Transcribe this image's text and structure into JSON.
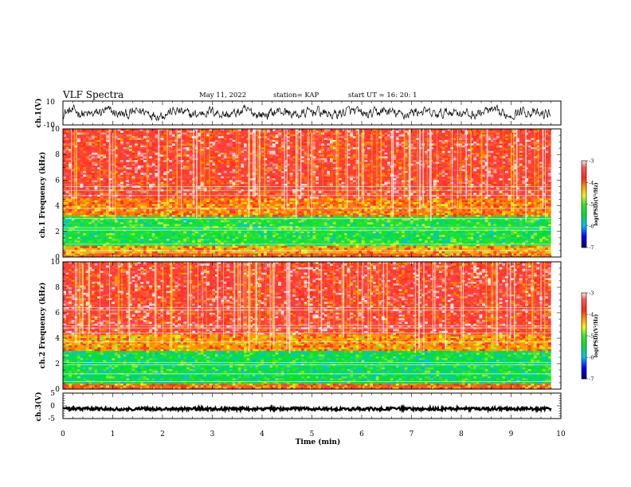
{
  "header": {
    "title": "VLF Spectra",
    "date": "May 11, 2022",
    "station": "station= KAP",
    "start": "start UT =  16: 20: 1"
  },
  "chart_data": [
    {
      "type": "line",
      "panel": "ch1-waveform",
      "ylabel": "ch.1(V)",
      "ylim": [
        -10,
        10
      ],
      "yticks": [
        "10",
        "-10"
      ],
      "x_range_min": [
        0,
        9.8
      ],
      "description_values": "broadband noise, amplitude roughly -6 to +6 V"
    },
    {
      "type": "heatmap",
      "panel": "ch1-spectrogram",
      "ylabel": "ch.1 Frequency (kHz)",
      "ylim": [
        0,
        10
      ],
      "yticks": [
        0,
        2,
        4,
        6,
        8,
        10
      ],
      "x_range_min": [
        0,
        9.8
      ],
      "bands_kHz": [
        {
          "from": 0.0,
          "to": 0.3,
          "log_psd": -4.0
        },
        {
          "from": 0.3,
          "to": 0.9,
          "log_psd": -4.3
        },
        {
          "from": 0.9,
          "to": 3.2,
          "log_psd": -5.3
        },
        {
          "from": 3.2,
          "to": 4.6,
          "log_psd": -4.1
        },
        {
          "from": 4.6,
          "to": 10.0,
          "log_psd": -3.6
        }
      ],
      "lines_kHz": [
        0.5,
        1.0,
        2.1,
        2.3,
        3.0,
        3.8,
        4.8,
        5.2,
        5.5
      ],
      "colorbar": {
        "label": "log(PSD)(V²/Hz)",
        "range": [
          -7,
          -3
        ],
        "ticks": [
          "-3",
          "-4",
          "-5",
          "-6",
          "-7"
        ]
      }
    },
    {
      "type": "heatmap",
      "panel": "ch2-spectrogram",
      "ylabel": "ch.2 Frequency (kHz)",
      "ylim": [
        0,
        10
      ],
      "yticks": [
        0,
        2,
        4,
        6,
        8,
        10
      ],
      "x_range_min": [
        0,
        9.8
      ],
      "bands_kHz": [
        {
          "from": 0.0,
          "to": 0.4,
          "log_psd": -4.0
        },
        {
          "from": 0.4,
          "to": 3.0,
          "log_psd": -5.4
        },
        {
          "from": 3.0,
          "to": 4.3,
          "log_psd": -4.2
        },
        {
          "from": 4.3,
          "to": 10.0,
          "log_psd": -3.6
        }
      ],
      "lines_kHz": [
        0.6,
        1.2,
        1.9,
        2.1,
        3.7,
        4.4,
        4.8,
        5.0,
        6.2,
        6.4
      ],
      "colorbar": {
        "label": "log(PSD)(V²/Hz)",
        "range": [
          -7,
          -3
        ],
        "ticks": [
          "-3",
          "-4",
          "-5",
          "-6",
          "-7"
        ]
      }
    },
    {
      "type": "line",
      "panel": "ch3-waveform",
      "ylabel": "ch.3(V)",
      "ylim": [
        -5,
        5
      ],
      "yticks": [
        "5",
        "0",
        "-5"
      ],
      "x_range_min": [
        0,
        9.8
      ],
      "description_values": "nearly constant near -1.2 V with small fluctuation"
    }
  ],
  "xaxis": {
    "label": "Time (min)",
    "range": [
      0,
      10
    ],
    "ticks": [
      "0",
      "1",
      "2",
      "3",
      "4",
      "5",
      "6",
      "7",
      "8",
      "9",
      "10"
    ]
  },
  "colors": {
    "high": "#ff2020",
    "mid": "#ff9a00",
    "yellow": "#f2f21a",
    "green": "#22dd22",
    "low": "#0000ff"
  }
}
